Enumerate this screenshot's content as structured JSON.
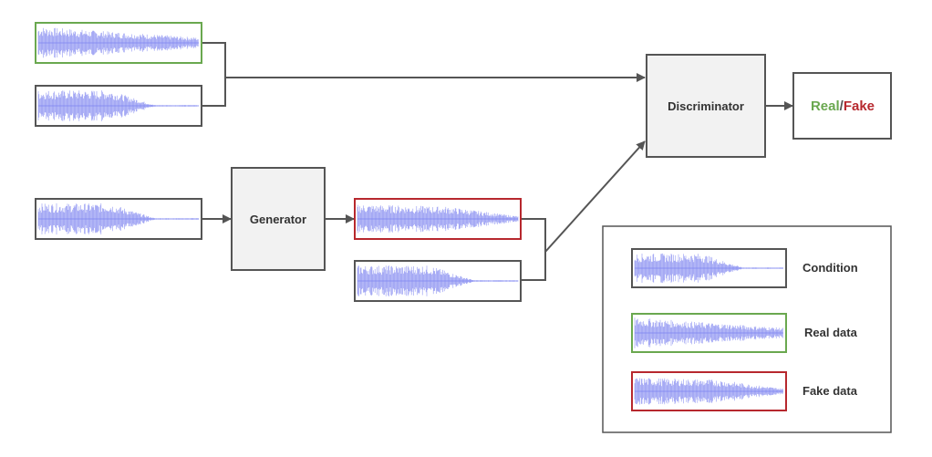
{
  "colors": {
    "real": "#6aa84f",
    "fake": "#b7282e",
    "neutral": "#555555",
    "wave": "#7b83f0",
    "block_fill": "#f2f2f2"
  },
  "nodes": {
    "generator": {
      "label": "Generator"
    },
    "discriminator": {
      "label": "Discriminator"
    }
  },
  "output": {
    "real": "Real",
    "separator": "/",
    "fake": "Fake"
  },
  "legend": {
    "condition": "Condition",
    "real_data": "Real data",
    "fake_data": "Fake data"
  },
  "waveform_icon": "audio-waveform"
}
